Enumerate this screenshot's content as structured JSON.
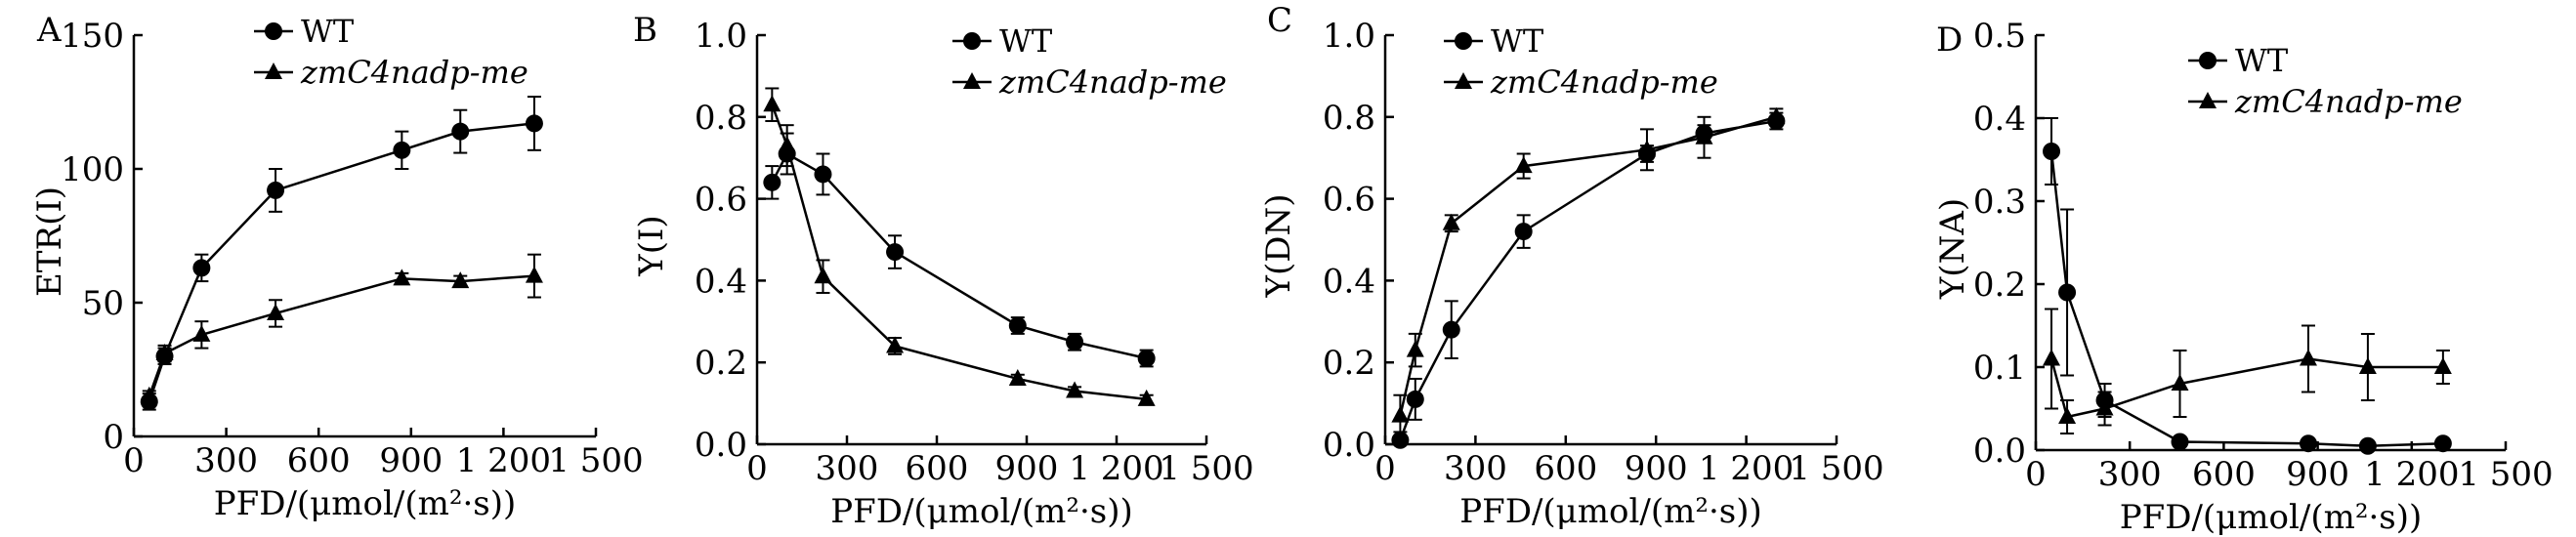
{
  "chart_data": [
    {
      "type": "line",
      "panel_label": "A",
      "ylabel": "ETR(Ⅰ)",
      "xlabel": "PFD/(μmol/(m²·s))",
      "xlim": [
        0,
        1500
      ],
      "ylim": [
        0,
        150
      ],
      "xticks": [
        0,
        300,
        600,
        900,
        1200,
        1500
      ],
      "xtick_labels": [
        "0",
        "300",
        "600",
        "900",
        "1 200",
        "1 500"
      ],
      "yticks": [
        0,
        50,
        100,
        150
      ],
      "ytick_labels": [
        "0",
        "50",
        "100",
        "150"
      ],
      "legend_position": "top-center",
      "x": [
        50,
        100,
        220,
        460,
        870,
        1060,
        1300
      ],
      "series": [
        {
          "name": "WT",
          "marker": "circle",
          "values": [
            13,
            30,
            63,
            92,
            107,
            114,
            117
          ],
          "errors": [
            3,
            3,
            5,
            8,
            7,
            8,
            10
          ]
        },
        {
          "name": "zmC4nadp-me",
          "marker": "triangle",
          "values": [
            15,
            31,
            38,
            46,
            59,
            58,
            60
          ],
          "errors": [
            2,
            3,
            5,
            5,
            2,
            2,
            8
          ]
        }
      ]
    },
    {
      "type": "line",
      "panel_label": "B",
      "ylabel": "Y(Ⅰ)",
      "xlabel": "PFD/(μmol/(m²·s))",
      "xlim": [
        0,
        1500
      ],
      "ylim": [
        0,
        1.0
      ],
      "xticks": [
        0,
        300,
        600,
        900,
        1200,
        1500
      ],
      "xtick_labels": [
        "0",
        "300",
        "600",
        "900",
        "1 200",
        "1 500"
      ],
      "yticks": [
        0,
        0.2,
        0.4,
        0.6,
        0.8,
        1.0
      ],
      "ytick_labels": [
        "0.0",
        "0.2",
        "0.4",
        "0.6",
        "0.8",
        "1.0"
      ],
      "legend_position": "top-right",
      "x": [
        50,
        100,
        220,
        460,
        870,
        1060,
        1300
      ],
      "series": [
        {
          "name": "WT",
          "marker": "circle",
          "values": [
            0.64,
            0.71,
            0.66,
            0.47,
            0.29,
            0.25,
            0.21
          ],
          "errors": [
            0.04,
            0.05,
            0.05,
            0.04,
            0.02,
            0.02,
            0.02
          ]
        },
        {
          "name": "zmC4nadp-me",
          "marker": "triangle",
          "values": [
            0.83,
            0.73,
            0.41,
            0.24,
            0.16,
            0.13,
            0.11
          ],
          "errors": [
            0.04,
            0.05,
            0.04,
            0.02,
            0.01,
            0.01,
            0.01
          ]
        }
      ]
    },
    {
      "type": "line",
      "panel_label": "C",
      "ylabel": "Y(DN)",
      "xlabel": "PFD/(μmol/(m²·s))",
      "xlim": [
        0,
        1500
      ],
      "ylim": [
        0,
        1.0
      ],
      "xticks": [
        0,
        300,
        600,
        900,
        1200,
        1500
      ],
      "xtick_labels": [
        "0",
        "300",
        "600",
        "900",
        "1 200",
        "1 500"
      ],
      "yticks": [
        0,
        0.2,
        0.4,
        0.6,
        0.8,
        1.0
      ],
      "ytick_labels": [
        "0.0",
        "0.2",
        "0.4",
        "0.6",
        "0.8",
        "1.0"
      ],
      "legend_position": "top-center",
      "x": [
        50,
        100,
        220,
        460,
        870,
        1060,
        1300
      ],
      "series": [
        {
          "name": "WT",
          "marker": "circle",
          "values": [
            0.01,
            0.11,
            0.28,
            0.52,
            0.71,
            0.76,
            0.79
          ],
          "errors": [
            0.02,
            0.05,
            0.07,
            0.04,
            0.02,
            0.02,
            0.02
          ]
        },
        {
          "name": "zmC4nadp-me",
          "marker": "triangle",
          "values": [
            0.07,
            0.23,
            0.54,
            0.68,
            0.72,
            0.75,
            0.8
          ],
          "errors": [
            0.05,
            0.04,
            0.02,
            0.03,
            0.05,
            0.05,
            0.02
          ]
        }
      ]
    },
    {
      "type": "line",
      "panel_label": "D",
      "ylabel": "Y(NA)",
      "xlabel": "PFD/(μmol/(m²·s))",
      "xlim": [
        0,
        1500
      ],
      "ylim": [
        0,
        0.5
      ],
      "xticks": [
        0,
        300,
        600,
        900,
        1200,
        1500
      ],
      "xtick_labels": [
        "0",
        "300",
        "600",
        "900",
        "1 200",
        "1 500"
      ],
      "yticks": [
        0,
        0.1,
        0.2,
        0.3,
        0.4,
        0.5
      ],
      "ytick_labels": [
        "0.0",
        "0.1",
        "0.2",
        "0.3",
        "0.4",
        "0.5"
      ],
      "legend_position": "top-center",
      "x": [
        50,
        100,
        220,
        460,
        870,
        1060,
        1300
      ],
      "series": [
        {
          "name": "WT",
          "marker": "circle",
          "values": [
            0.36,
            0.19,
            0.06,
            0.01,
            0.008,
            0.005,
            0.008
          ],
          "errors": [
            0.04,
            0.1,
            0.02,
            0.004,
            0.002,
            0.002,
            0.003
          ]
        },
        {
          "name": "zmC4nadp-me",
          "marker": "triangle",
          "values": [
            0.11,
            0.04,
            0.05,
            0.08,
            0.11,
            0.1,
            0.1
          ],
          "errors": [
            0.06,
            0.02,
            0.02,
            0.04,
            0.04,
            0.04,
            0.02
          ]
        }
      ]
    }
  ]
}
